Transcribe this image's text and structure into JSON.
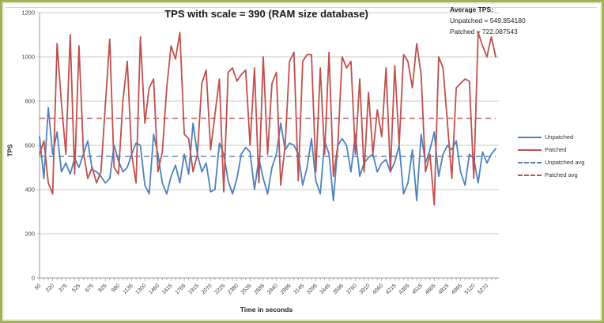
{
  "title": "TPS with scale = 390 (RAM size database)",
  "annotation": {
    "heading": "Average TPS:",
    "unpatched_line": "Unpatched = 549.854180",
    "patched_line": "Patched = 722.087543"
  },
  "axes": {
    "x_title": "Time in seconds",
    "y_title": "TPS"
  },
  "legend": [
    {
      "label": "Unpatched",
      "color": "#4F81BD",
      "dash": false
    },
    {
      "label": "Patched",
      "color": "#C0504D",
      "dash": false
    },
    {
      "label": "Unpatched avg",
      "color": "#5B7FAE",
      "dash": true
    },
    {
      "label": "Patched avg",
      "color": "#C0504D",
      "dash": true
    }
  ],
  "colors": {
    "frame_border": "#a2b257",
    "gridline": "#c8c8c8",
    "axis": "#9a9a9a",
    "tick_text": "#3f3f3f"
  },
  "chart_data": {
    "type": "line",
    "title": "TPS with scale = 390 (RAM size database)",
    "xlabel": "Time in seconds",
    "ylabel": "TPS",
    "ylim": [
      0,
      1200
    ],
    "grid": true,
    "legend_position": "right",
    "y_ticks": [
      0,
      200,
      400,
      600,
      800,
      1000,
      1200
    ],
    "x_label_every": 3,
    "x_tick_labels": [
      "50",
      "220",
      "375",
      "525",
      "675",
      "825",
      "980",
      "1135",
      "1300",
      "1460",
      "1615",
      "1765",
      "1915",
      "2070",
      "2225",
      "2380",
      "2535",
      "2685",
      "2840",
      "2995",
      "3145",
      "3295",
      "3445",
      "3595",
      "3760",
      "3910",
      "4060",
      "4215",
      "4365",
      "4515",
      "4665",
      "4815",
      "4965",
      "5120",
      "5270"
    ],
    "averages": {
      "unpatched": 549.85418,
      "patched": 722.087543
    },
    "series": [
      {
        "name": "Unpatched",
        "color": "#4F81BD",
        "style": "solid",
        "values": [
          640,
          450,
          770,
          560,
          660,
          480,
          520,
          470,
          540,
          500,
          560,
          620,
          490,
          480,
          460,
          430,
          450,
          600,
          530,
          480,
          500,
          560,
          610,
          600,
          420,
          380,
          650,
          560,
          430,
          380,
          460,
          510,
          430,
          560,
          470,
          700,
          560,
          480,
          520,
          390,
          400,
          610,
          560,
          440,
          380,
          450,
          560,
          590,
          570,
          400,
          540,
          450,
          380,
          500,
          560,
          700,
          580,
          610,
          600,
          560,
          420,
          500,
          630,
          440,
          380,
          620,
          560,
          350,
          600,
          630,
          600,
          480,
          650,
          460,
          520,
          545,
          560,
          480,
          520,
          535,
          480,
          525,
          600,
          380,
          430,
          580,
          350,
          650,
          520,
          580,
          660,
          460,
          560,
          600,
          580,
          620,
          480,
          420,
          560,
          540,
          430,
          570,
          520,
          560,
          585
        ]
      },
      {
        "name": "Patched",
        "color": "#C0504D",
        "style": "solid",
        "values": [
          560,
          620,
          430,
          380,
          1060,
          790,
          560,
          1100,
          470,
          1050,
          570,
          450,
          500,
          430,
          480,
          780,
          1080,
          500,
          470,
          800,
          980,
          560,
          430,
          1090,
          700,
          860,
          900,
          480,
          570,
          860,
          1050,
          990,
          1110,
          650,
          630,
          480,
          560,
          880,
          940,
          580,
          740,
          900,
          390,
          930,
          950,
          890,
          920,
          940,
          600,
          950,
          430,
          1000,
          560,
          880,
          930,
          420,
          600,
          980,
          1020,
          440,
          980,
          1010,
          1010,
          480,
          950,
          560,
          1020,
          460,
          600,
          1000,
          950,
          980,
          560,
          900,
          480,
          840,
          560,
          760,
          640,
          950,
          480,
          960,
          600,
          1010,
          980,
          860,
          1060,
          920,
          480,
          560,
          330,
          1000,
          950,
          700,
          450,
          860,
          880,
          900,
          890,
          450,
          1110,
          1050,
          1000,
          1090,
          1000
        ]
      },
      {
        "name": "Unpatched avg",
        "color": "#5B7FAE",
        "style": "dashed",
        "value": 549.85418
      },
      {
        "name": "Patched avg",
        "color": "#C0504D",
        "style": "dashed",
        "value": 722.087543
      }
    ]
  }
}
